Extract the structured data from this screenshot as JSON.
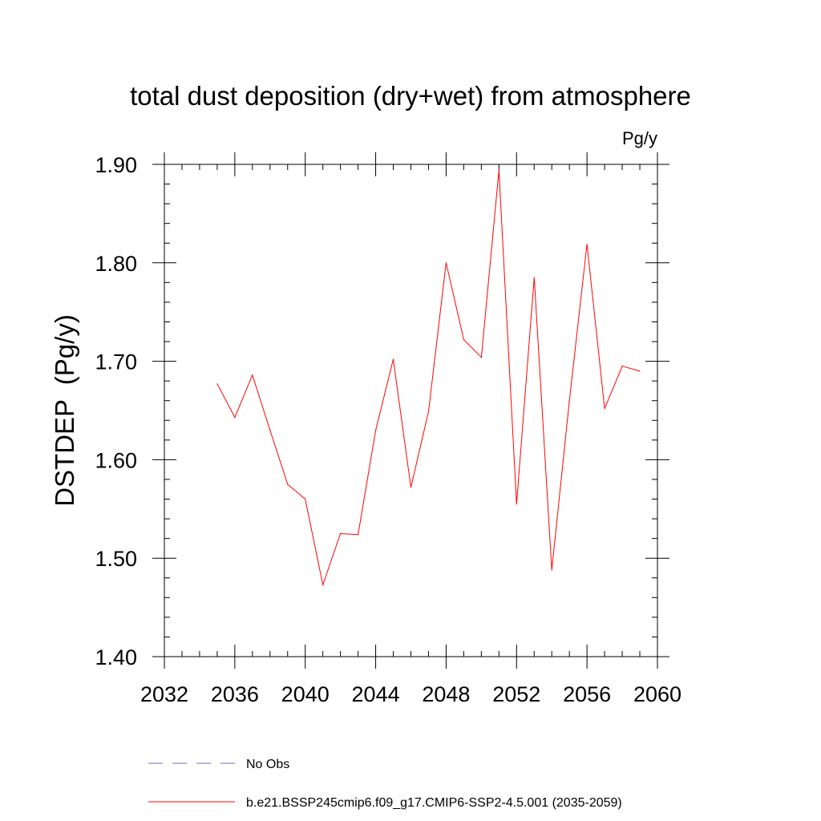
{
  "chart_data": {
    "type": "line",
    "title": "total dust deposition (dry+wet) from atmosphere",
    "units_label": "Pg/y",
    "ylabel": "DSTDEP  (Pg/y)",
    "xlabel": "",
    "xlim": [
      2032,
      2060
    ],
    "ylim": [
      1.4,
      1.9
    ],
    "x_ticks": [
      2032,
      2036,
      2040,
      2044,
      2048,
      2052,
      2056,
      2060
    ],
    "x_tick_labels": [
      "2032",
      "2036",
      "2040",
      "2044",
      "2048",
      "2052",
      "2056",
      "2060"
    ],
    "y_ticks": [
      1.4,
      1.5,
      1.6,
      1.7,
      1.8,
      1.9
    ],
    "y_tick_labels": [
      "1.40",
      "1.50",
      "1.60",
      "1.70",
      "1.80",
      "1.90"
    ],
    "x_minor_step": 1,
    "y_minor_step": 0.02,
    "grid": false,
    "legend_position": "bottom-left below plot",
    "series": [
      {
        "name": "b.e21.BSSP245cmip6.f09_g17.CMIP6-SSP2-4.5.001 (2035-2059)",
        "color": "#ff0000",
        "style": "solid",
        "x": [
          2035,
          2036,
          2037,
          2038,
          2039,
          2040,
          2041,
          2042,
          2043,
          2044,
          2045,
          2046,
          2047,
          2048,
          2049,
          2050,
          2051,
          2052,
          2053,
          2054,
          2055,
          2056,
          2057,
          2058,
          2059
        ],
        "values": [
          1.677,
          1.643,
          1.686,
          1.63,
          1.575,
          1.56,
          1.473,
          1.525,
          1.524,
          1.63,
          1.702,
          1.572,
          1.649,
          1.8,
          1.722,
          1.704,
          1.894,
          1.555,
          1.785,
          1.488,
          1.66,
          1.819,
          1.652,
          1.695,
          1.69
        ]
      }
    ],
    "legend": [
      {
        "label": "No Obs",
        "color": "#6b6bb5",
        "style": "dashed"
      },
      {
        "label": "b.e21.BSSP245cmip6.f09_g17.CMIP6-SSP2-4.5.001 (2035-2059)",
        "color": "#ff0000",
        "style": "solid"
      }
    ]
  }
}
